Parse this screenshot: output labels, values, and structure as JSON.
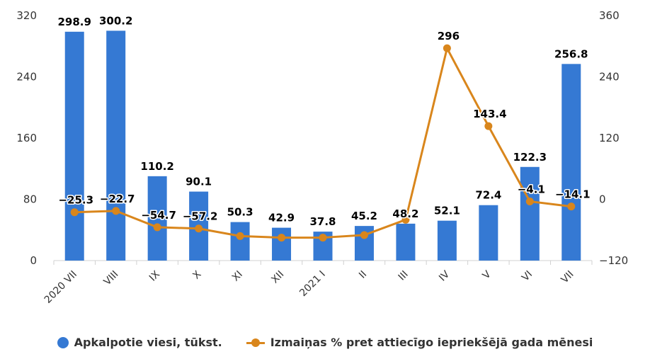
{
  "chart_data": {
    "type": "bar",
    "categories": [
      "2020 VII",
      "VIII",
      "IX",
      "X",
      "XI",
      "XII",
      "2021 I",
      "II",
      "III",
      "IV",
      "V",
      "VI",
      "VII"
    ],
    "series": [
      {
        "name": "Apkalpotie viesi, tūkst.",
        "type": "bar",
        "axis": "left",
        "color": "#3579d3",
        "values": [
          298.9,
          300.2,
          110.2,
          90.1,
          50.3,
          42.9,
          37.8,
          45.2,
          48.2,
          52.1,
          72.4,
          122.3,
          256.8
        ],
        "labels": [
          "298.9",
          "300.2",
          "110.2",
          "90.1",
          "50.3",
          "42.9",
          "37.8",
          "45.2",
          "48.2",
          "52.1",
          "72.4",
          "122.3",
          "256.8"
        ]
      },
      {
        "name": "Izmaiņas % pret attiecīgo iepriekšējā gada mēnesi",
        "type": "line",
        "axis": "right",
        "color": "#d9861c",
        "values": [
          -25.3,
          -22.7,
          -54.7,
          -57.2,
          -72.0,
          -75.0,
          -75.0,
          -70.0,
          -40.0,
          296,
          143.4,
          -4.1,
          -14.1
        ],
        "labels": [
          "−25.3",
          "−22.7",
          "−54.7",
          "−57.2",
          "",
          "",
          "",
          "",
          "",
          "296",
          "143.4",
          "−4.1",
          "−14.1"
        ]
      }
    ],
    "y_left": {
      "ylim": [
        0,
        320
      ],
      "ticks": [
        "0",
        "80",
        "160",
        "240",
        "320"
      ]
    },
    "y_right": {
      "ylim": [
        -120,
        360
      ],
      "ticks": [
        "−120",
        "0",
        "120",
        "240",
        "360"
      ]
    },
    "grid": false,
    "legend_position": "bottom"
  }
}
